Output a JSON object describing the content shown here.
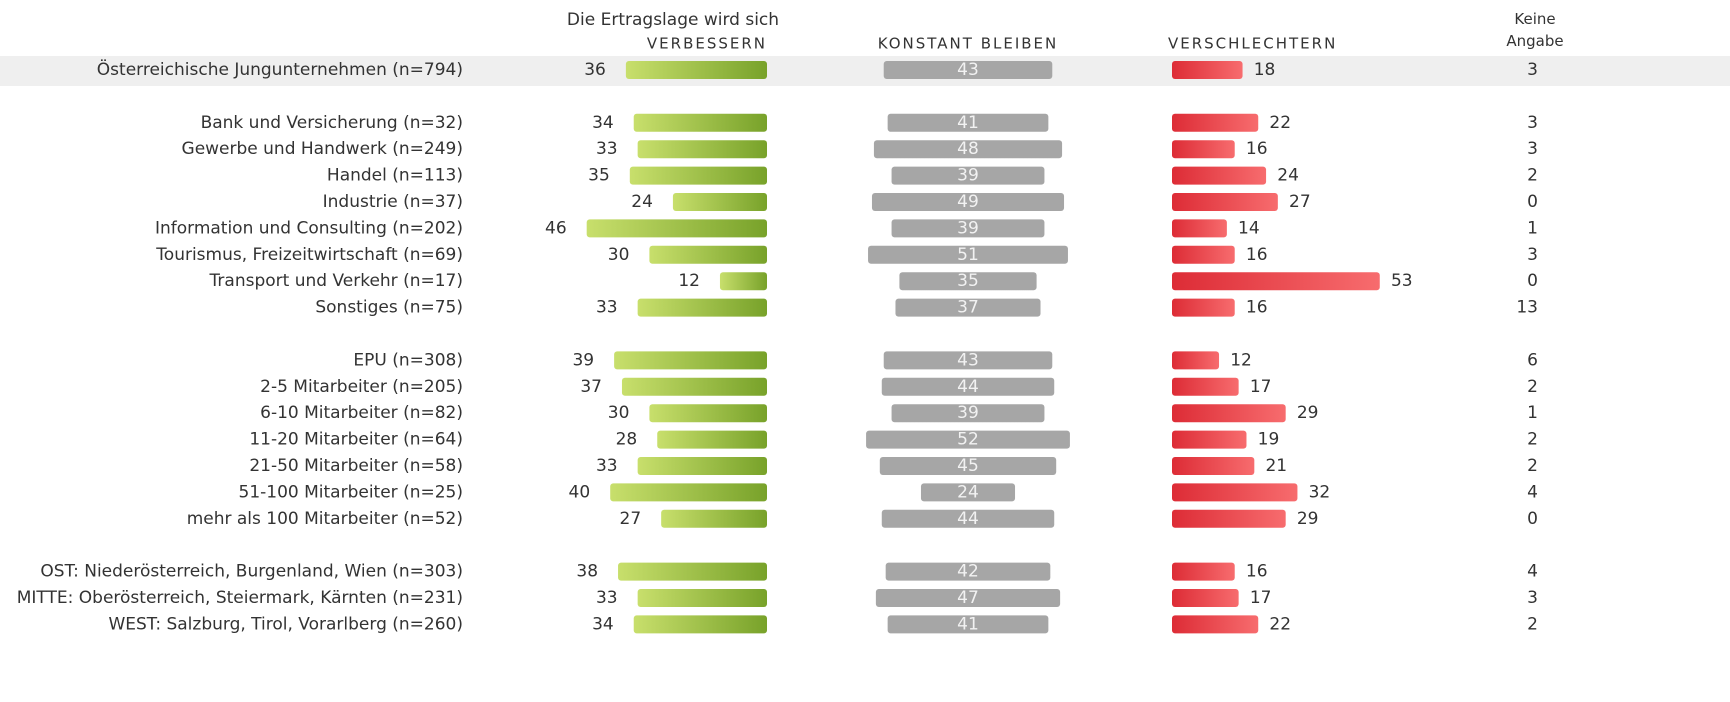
{
  "chart_data": {
    "type": "bar",
    "subtitle": "Die Ertragslage wird sich",
    "categories": [
      "Österreichische Jungunternehmen (n=794)",
      null,
      "Bank und Versicherung (n=32)",
      "Gewerbe und Handwerk (n=249)",
      "Handel (n=113)",
      "Industrie (n=37)",
      "Information und Consulting (n=202)",
      "Tourismus, Freizeitwirtschaft (n=69)",
      "Transport und Verkehr (n=17)",
      "Sonstiges (n=75)",
      null,
      "EPU (n=308)",
      "2-5 Mitarbeiter (n=205)",
      "6-10 Mitarbeiter (n=82)",
      "11-20 Mitarbeiter (n=64)",
      "21-50 Mitarbeiter (n=58)",
      "51-100 Mitarbeiter (n=25)",
      "mehr als 100 Mitarbeiter (n=52)",
      null,
      "OST: Niederösterreich, Burgenland, Wien (n=303)",
      "MITTE: Oberösterreich, Steiermark, Kärnten (n=231)",
      "WEST: Salzburg, Tirol, Vorarlberg (n=260)"
    ],
    "series": [
      {
        "name": "VERBESSERN",
        "color": [
          "#c8df6c",
          "#78a22a"
        ],
        "values": [
          36,
          null,
          34,
          33,
          35,
          24,
          46,
          30,
          12,
          33,
          null,
          39,
          37,
          30,
          28,
          33,
          40,
          27,
          null,
          38,
          33,
          34
        ]
      },
      {
        "name": "KONSTANT BLEIBEN",
        "color": [
          "#a6a6a6",
          "#a6a6a6"
        ],
        "values": [
          43,
          null,
          41,
          48,
          39,
          49,
          39,
          51,
          35,
          37,
          null,
          43,
          44,
          39,
          52,
          45,
          24,
          44,
          null,
          42,
          47,
          41
        ]
      },
      {
        "name": "VERSCHLECHTERN",
        "color": [
          "#dd2c36",
          "#f76c6e"
        ],
        "values": [
          18,
          null,
          22,
          16,
          24,
          27,
          14,
          16,
          53,
          16,
          null,
          12,
          17,
          29,
          19,
          21,
          32,
          29,
          null,
          16,
          17,
          22
        ]
      },
      {
        "name": "Keine Angabe",
        "values": [
          3,
          null,
          3,
          3,
          2,
          0,
          1,
          3,
          0,
          13,
          null,
          6,
          2,
          1,
          2,
          2,
          4,
          0,
          null,
          4,
          3,
          2
        ]
      }
    ]
  }
}
